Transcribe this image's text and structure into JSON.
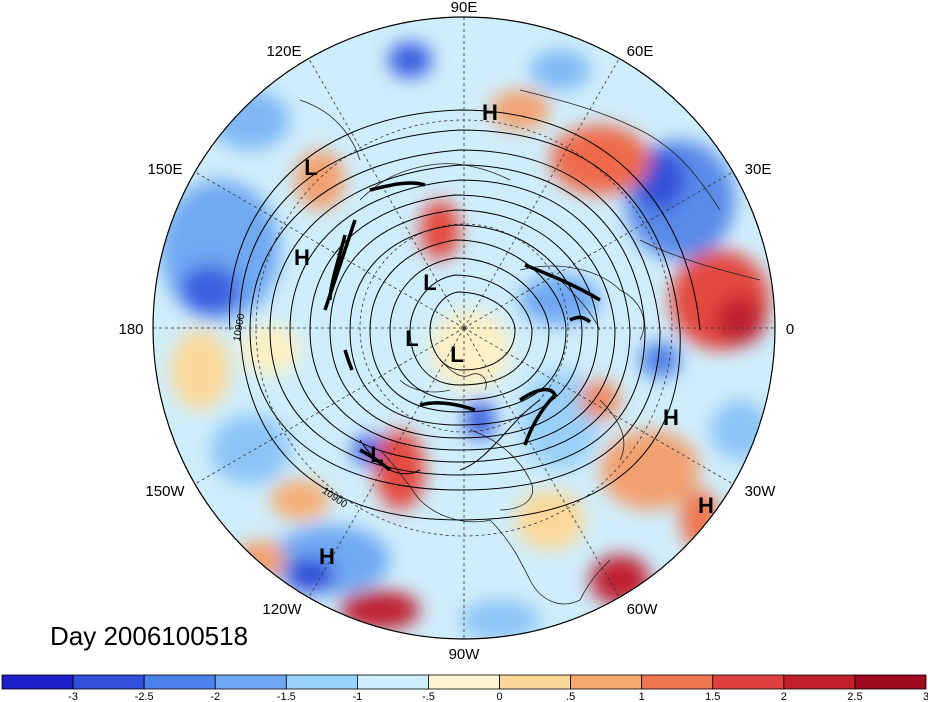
{
  "map": {
    "title_text": "Day 2006100518",
    "projection": "north-polar-stereographic",
    "longitude_labels": [
      {
        "id": "lon-90e",
        "text": "90E"
      },
      {
        "id": "lon-60e",
        "text": "60E"
      },
      {
        "id": "lon-30e",
        "text": "30E"
      },
      {
        "id": "lon-0",
        "text": "0"
      },
      {
        "id": "lon-30w",
        "text": "30W"
      },
      {
        "id": "lon-60w",
        "text": "60W"
      },
      {
        "id": "lon-90w",
        "text": "90W"
      },
      {
        "id": "lon-120w",
        "text": "120W"
      },
      {
        "id": "lon-150w",
        "text": "150W"
      },
      {
        "id": "lon-180",
        "text": "180"
      },
      {
        "id": "lon-150e",
        "text": "150E"
      },
      {
        "id": "lon-120e",
        "text": "120E"
      }
    ],
    "pressure_centers": [
      {
        "id": "h-siberia",
        "text": "H"
      },
      {
        "id": "l-kamchatka",
        "text": "L"
      },
      {
        "id": "h-pacific-north",
        "text": "H"
      },
      {
        "id": "l-arctic-1",
        "text": "L"
      },
      {
        "id": "l-arctic-2",
        "text": "L"
      },
      {
        "id": "l-pole",
        "text": "L"
      },
      {
        "id": "l-alaska-gulf",
        "text": "L"
      },
      {
        "id": "h-pacific-south",
        "text": "H"
      },
      {
        "id": "h-atlantic-1",
        "text": "H"
      },
      {
        "id": "h-atlantic-2",
        "text": "H"
      }
    ],
    "contour_labels": [
      {
        "id": "cl-left",
        "text": "10900"
      },
      {
        "id": "cl-bottom",
        "text": "10900"
      }
    ]
  },
  "colorbar": {
    "colors": [
      "#1e1ec8",
      "#3250dc",
      "#4c82eb",
      "#6ea8f5",
      "#96d2fa",
      "#cdeefd",
      "#fdf5d2",
      "#fbd89a",
      "#f5a96e",
      "#ee7650",
      "#e04040",
      "#c0212b",
      "#9e0b1f"
    ],
    "tick_labels": [
      "-3",
      "-2.5",
      "-2",
      "-1.5",
      "-1",
      "-.5",
      "0",
      ".5",
      "1",
      "1.5",
      "2",
      "2.5",
      "3"
    ]
  }
}
